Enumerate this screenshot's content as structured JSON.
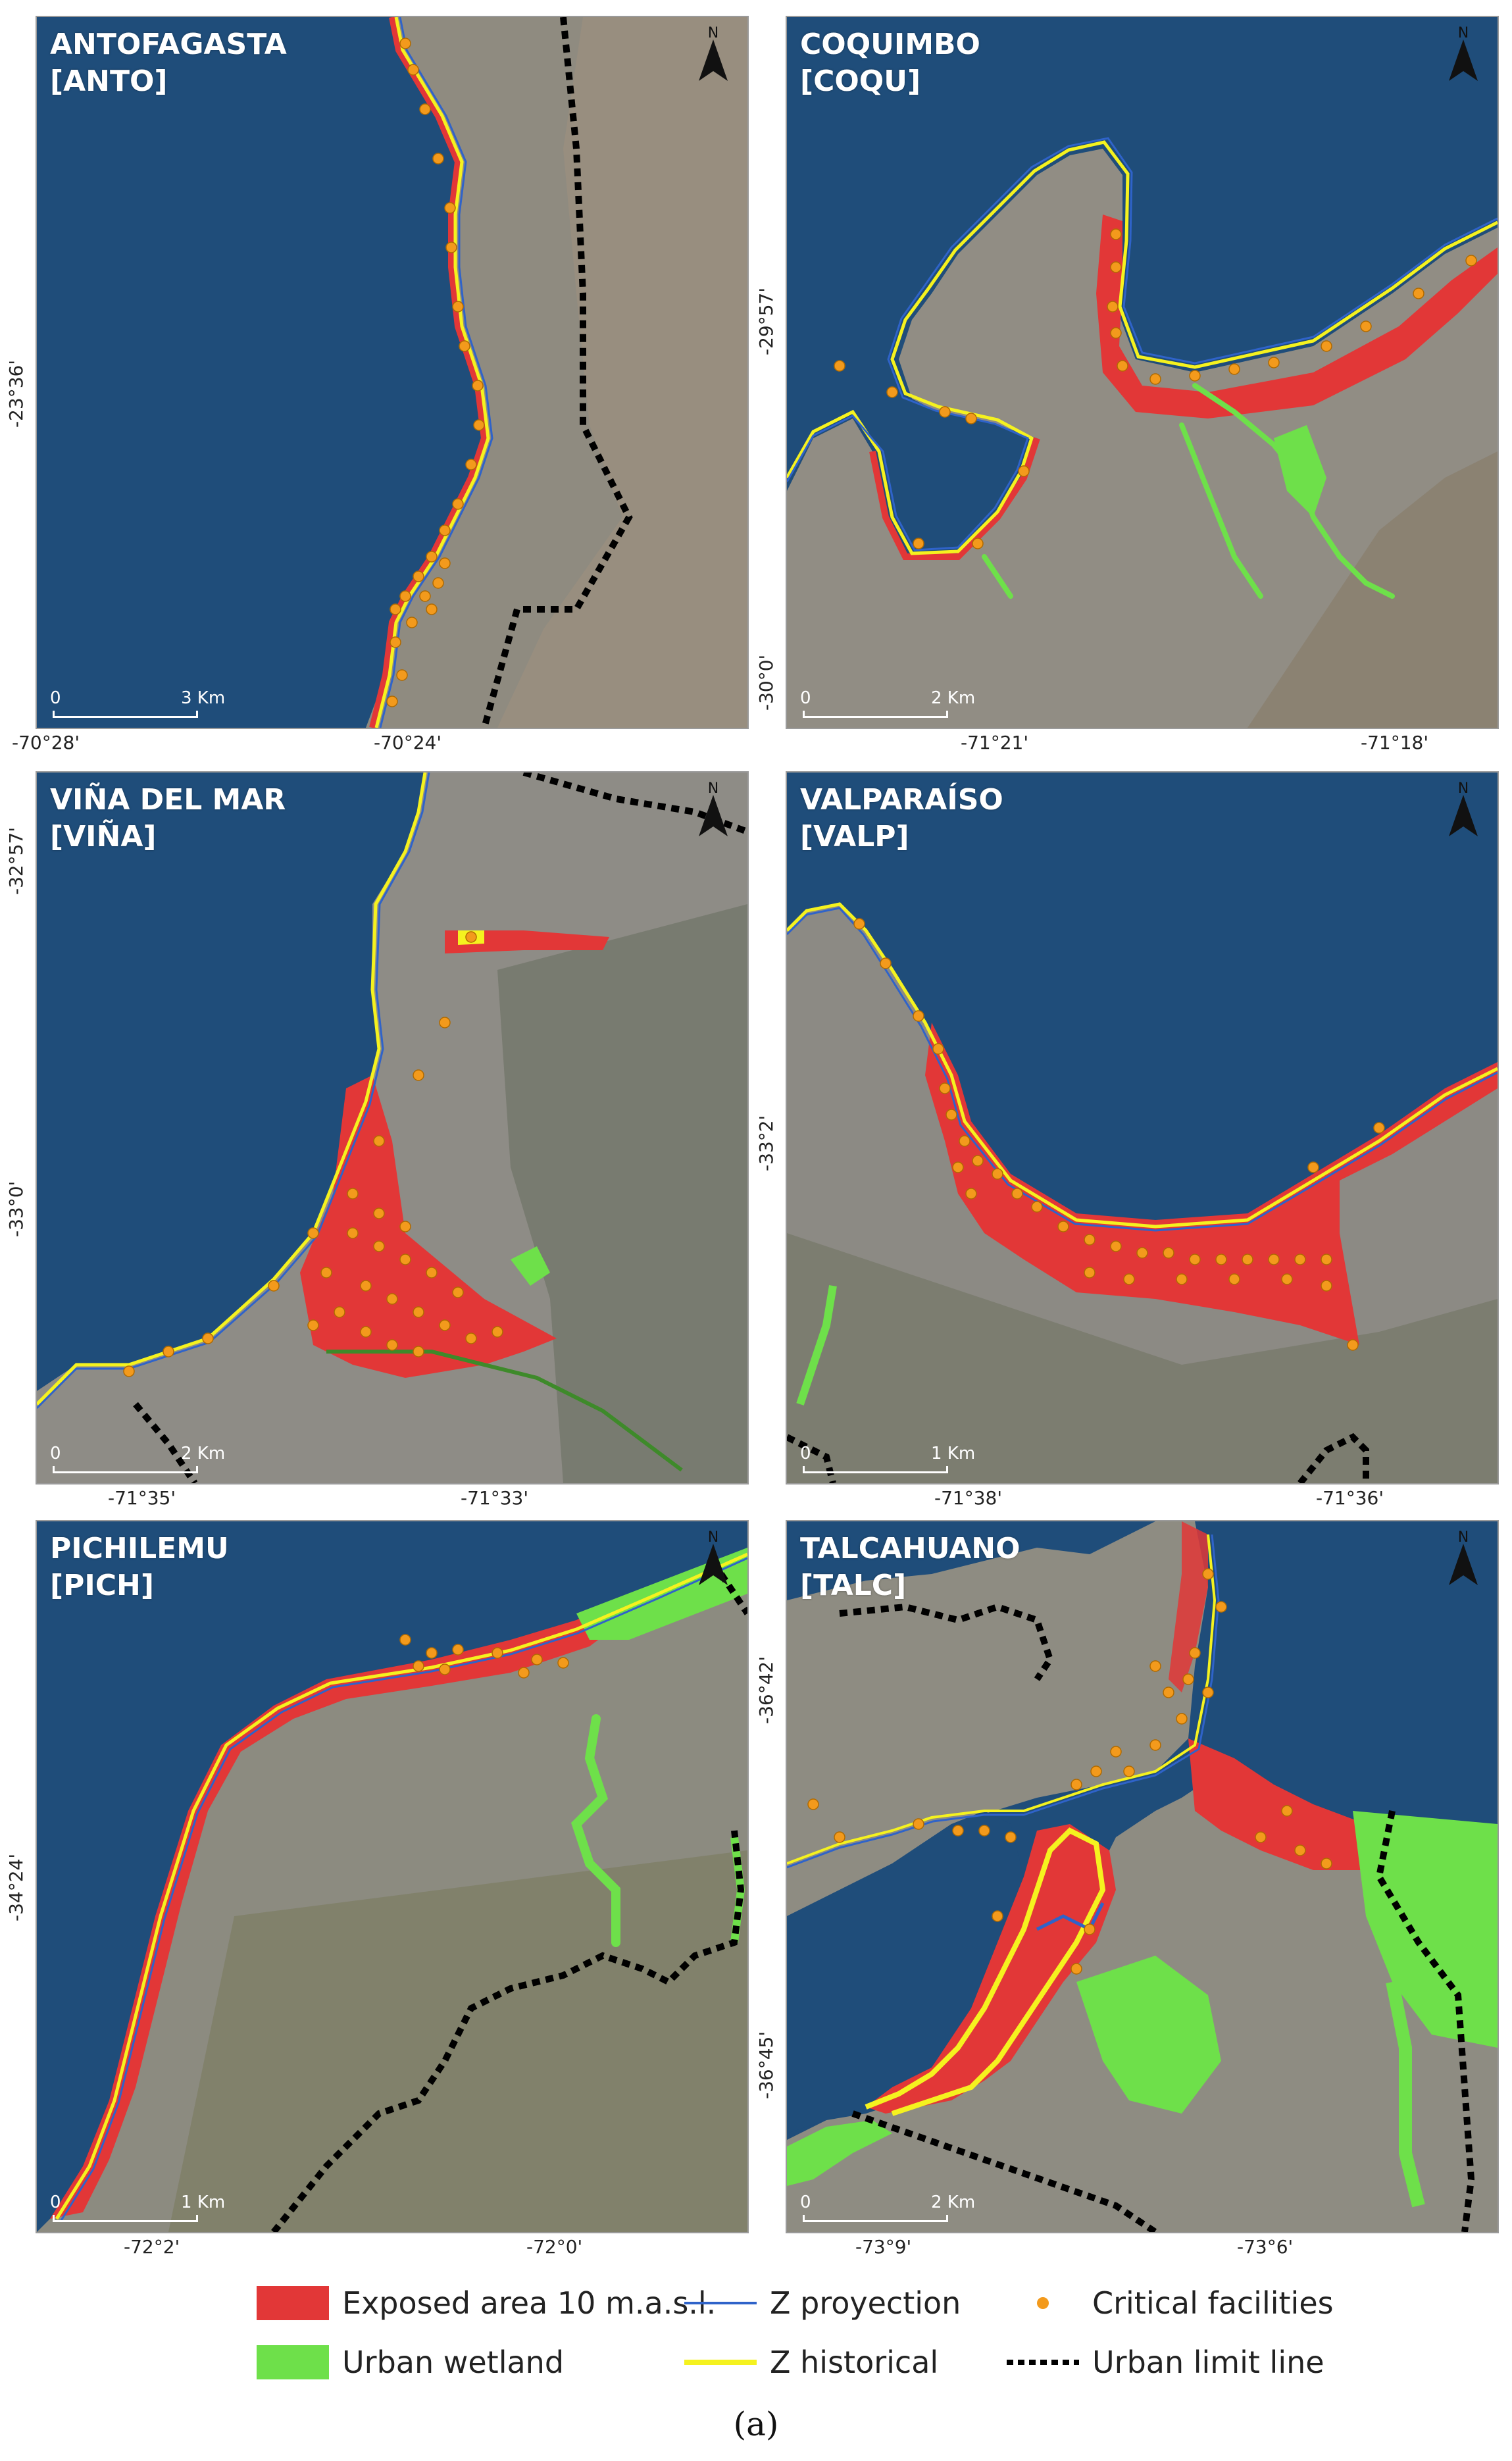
{
  "colors": {
    "sea": "#1f4d7a",
    "land": "#8a8a80",
    "exposed": "#e23737",
    "wetland": "#6ee04a",
    "z_projection": "#2f63c9",
    "z_historical": "#f5f21f",
    "facility": "#f39a1c",
    "limit": "#000000"
  },
  "panels": [
    {
      "id": "anto",
      "title_line1": "ANTOFAGASTA",
      "title_line2": "[ANTO]",
      "north": "N",
      "scale_zero": "0",
      "scale_end": "3 Km",
      "x_ticks": [
        "-70°28'",
        "-70°24'"
      ],
      "y_ticks": [
        "-23°36'"
      ]
    },
    {
      "id": "coqu",
      "title_line1": "COQUIMBO",
      "title_line2": "[COQU]",
      "north": "N",
      "scale_zero": "0",
      "scale_end": "2 Km",
      "x_ticks": [
        "-71°21'",
        "-71°18'"
      ],
      "y_ticks": [
        "-29°57'",
        "-30°0'"
      ]
    },
    {
      "id": "vina",
      "title_line1": "VIÑA DEL MAR",
      "title_line2": "[VIÑA]",
      "north": "N",
      "scale_zero": "0",
      "scale_end": "2 Km",
      "x_ticks": [
        "-71°35'",
        "-71°33'"
      ],
      "y_ticks": [
        "-32°57'",
        "-33°0'"
      ]
    },
    {
      "id": "valp",
      "title_line1": "VALPARAÍSO",
      "title_line2": "[VALP]",
      "north": "N",
      "scale_zero": "0",
      "scale_end": "1 Km",
      "x_ticks": [
        "-71°38'",
        "-71°36'"
      ],
      "y_ticks": [
        "-33°2'"
      ]
    },
    {
      "id": "pich",
      "title_line1": "PICHILEMU",
      "title_line2": "[PICH]",
      "north": "N",
      "scale_zero": "0",
      "scale_end": "1 Km",
      "x_ticks": [
        "-72°2'",
        "-72°0'"
      ],
      "y_ticks": [
        "-34°24'"
      ]
    },
    {
      "id": "talc",
      "title_line1": "TALCAHUANO",
      "title_line2": "[TALC]",
      "north": "N",
      "scale_zero": "0",
      "scale_end": "2 Km",
      "x_ticks": [
        "-73°9'",
        "-73°6'"
      ],
      "y_ticks": [
        "-36°42'",
        "-36°45'"
      ]
    }
  ],
  "legend": {
    "exposed": "Exposed area 10 m.a.s.l.",
    "z_projection": "Z proyection",
    "facilities": "Critical facilities",
    "wetland": "Urban wetland",
    "z_historical": "Z historical",
    "limit": "Urban limit line"
  },
  "caption": "(a)"
}
